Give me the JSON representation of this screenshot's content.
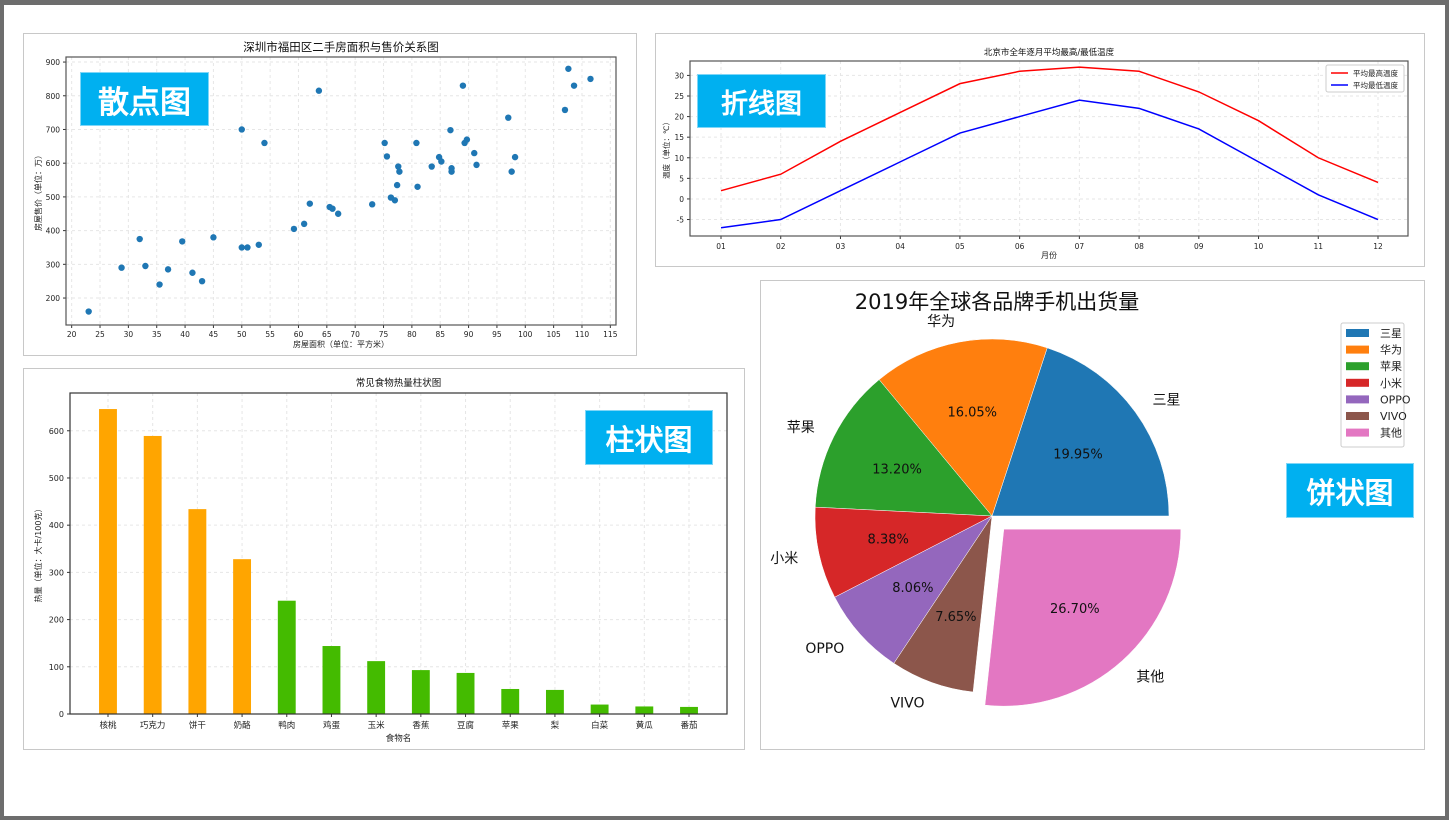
{
  "badges": {
    "scatter": "散点图",
    "line": "折线图",
    "bar": "柱状图",
    "pie": "饼状图"
  },
  "chart_data": [
    {
      "type": "scatter",
      "title": "深圳市福田区二手房面积与售价关系图",
      "xlabel": "房屋面积（单位：平方米）",
      "ylabel": "房屋售价（单位：万）",
      "xlim": [
        19,
        116
      ],
      "ylim": [
        120,
        915
      ],
      "xticks": [
        20,
        25,
        30,
        35,
        40,
        45,
        50,
        55,
        60,
        65,
        70,
        75,
        80,
        85,
        90,
        95,
        100,
        105,
        110,
        115
      ],
      "yticks": [
        200,
        300,
        400,
        500,
        600,
        700,
        800,
        900
      ],
      "grid": true,
      "color": "#1f77b4",
      "points": [
        [
          23,
          160
        ],
        [
          28.8,
          290
        ],
        [
          32,
          375
        ],
        [
          33,
          295
        ],
        [
          35.5,
          240
        ],
        [
          37,
          285
        ],
        [
          39.5,
          368
        ],
        [
          41.3,
          275
        ],
        [
          43,
          250
        ],
        [
          45,
          380
        ],
        [
          50,
          700
        ],
        [
          50,
          350
        ],
        [
          51,
          350
        ],
        [
          53,
          358
        ],
        [
          54,
          660
        ],
        [
          59.2,
          405
        ],
        [
          61,
          420
        ],
        [
          62,
          480
        ],
        [
          63.6,
          815
        ],
        [
          65.5,
          470
        ],
        [
          66,
          465
        ],
        [
          67,
          450
        ],
        [
          73,
          478
        ],
        [
          75.2,
          660
        ],
        [
          75.6,
          620
        ],
        [
          76.3,
          498
        ],
        [
          77,
          490
        ],
        [
          77.4,
          535
        ],
        [
          77.6,
          590
        ],
        [
          77.8,
          575
        ],
        [
          80.8,
          660
        ],
        [
          81,
          530
        ],
        [
          83.5,
          590
        ],
        [
          84.8,
          618
        ],
        [
          85.2,
          605
        ],
        [
          86.8,
          698
        ],
        [
          87,
          585
        ],
        [
          87,
          575
        ],
        [
          89,
          830
        ],
        [
          89.3,
          660
        ],
        [
          89.7,
          670
        ],
        [
          91,
          630
        ],
        [
          91.4,
          595
        ],
        [
          97,
          735
        ],
        [
          97.6,
          575
        ],
        [
          98.2,
          618
        ],
        [
          107,
          758
        ],
        [
          107.6,
          880
        ],
        [
          108.6,
          830
        ],
        [
          111.5,
          850
        ]
      ]
    },
    {
      "type": "line",
      "title": "北京市全年逐月平均最高/最低温度",
      "xlabel": "月份",
      "ylabel": "温度（单位：℃）",
      "categories": [
        "01",
        "02",
        "03",
        "04",
        "05",
        "06",
        "07",
        "08",
        "09",
        "10",
        "11",
        "12"
      ],
      "ylim": [
        -9,
        33.5
      ],
      "yticks": [
        -5,
        0,
        5,
        10,
        15,
        20,
        25,
        30
      ],
      "grid": true,
      "legend_position": "upper right",
      "series": [
        {
          "name": "平均最高温度",
          "color": "#ff0000",
          "values": [
            2,
            6,
            14,
            21,
            28,
            31,
            32,
            31,
            26,
            19,
            10,
            4
          ]
        },
        {
          "name": "平均最低温度",
          "color": "#0000ff",
          "values": [
            -7,
            -5,
            2,
            9,
            16,
            20,
            24,
            22,
            17,
            9,
            1,
            -5
          ]
        }
      ]
    },
    {
      "type": "bar",
      "title": "常见食物热量柱状图",
      "xlabel": "食物名",
      "ylabel": "热量（单位：大卡/100克）",
      "categories": [
        "核桃",
        "巧克力",
        "饼干",
        "奶酪",
        "鸭肉",
        "鸡蛋",
        "玉米",
        "香蕉",
        "豆腐",
        "苹果",
        "梨",
        "白菜",
        "黄瓜",
        "番茄"
      ],
      "values": [
        646,
        589,
        434,
        328,
        240,
        144,
        112,
        93,
        87,
        53,
        51,
        20,
        16,
        15
      ],
      "colors": [
        "#ffa500",
        "#ffa500",
        "#ffa500",
        "#ffa500",
        "#44bb00",
        "#44bb00",
        "#44bb00",
        "#44bb00",
        "#44bb00",
        "#44bb00",
        "#44bb00",
        "#44bb00",
        "#44bb00",
        "#44bb00"
      ],
      "ylim": [
        0,
        680
      ],
      "yticks": [
        0,
        100,
        200,
        300,
        400,
        500,
        600
      ],
      "grid": true
    },
    {
      "type": "pie",
      "title": "2019年全球各品牌手机出货量",
      "labels": [
        "三星",
        "华为",
        "苹果",
        "小米",
        "OPPO",
        "VIVO",
        "其他"
      ],
      "values": [
        19.95,
        16.05,
        13.2,
        8.38,
        8.06,
        7.65,
        26.7
      ],
      "value_labels": [
        "19.95%",
        "16.05%",
        "13.20%",
        "8.38%",
        "8.06%",
        "7.65%",
        "26.70%"
      ],
      "colors": [
        "#1f77b4",
        "#ff7f0e",
        "#2ca02c",
        "#d62728",
        "#9467bd",
        "#8c564b",
        "#e377c2"
      ],
      "explode": [
        0,
        0,
        0,
        0,
        0,
        0,
        0.1
      ],
      "legend_position": "upper right"
    }
  ]
}
